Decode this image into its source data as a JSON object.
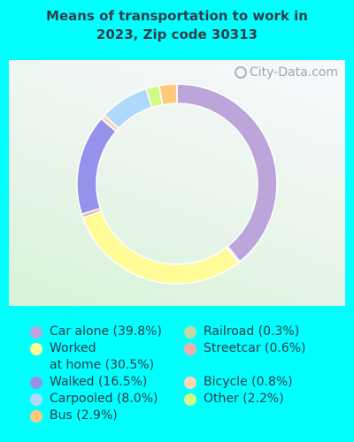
{
  "title_lines": [
    "Means of transportation to work in",
    "2023, Zip code 30313"
  ],
  "watermark": "City-Data.com",
  "chart_data": {
    "type": "pie",
    "donut": true,
    "slices": [
      {
        "label": "Car alone",
        "value": 39.8,
        "color": "#BCA5DA"
      },
      {
        "label": "Railroad",
        "value": 0.3,
        "color": "#BCDBA9"
      },
      {
        "label": "Worked\nat home",
        "value": 30.5,
        "color": "#FFFB96"
      },
      {
        "label": "Streetcar",
        "value": 0.6,
        "color": "#F2AFA9"
      },
      {
        "label": "Walked",
        "value": 16.5,
        "color": "#9592EB"
      },
      {
        "label": "Bicycle",
        "value": 0.8,
        "color": "#FED6B3"
      },
      {
        "label": "Carpooled",
        "value": 8.0,
        "color": "#AED9FB"
      },
      {
        "label": "Other",
        "value": 2.2,
        "color": "#D1FA86"
      },
      {
        "label": "Bus",
        "value": 2.9,
        "color": "#FEC97A"
      }
    ],
    "legend_placement": "bottom"
  }
}
